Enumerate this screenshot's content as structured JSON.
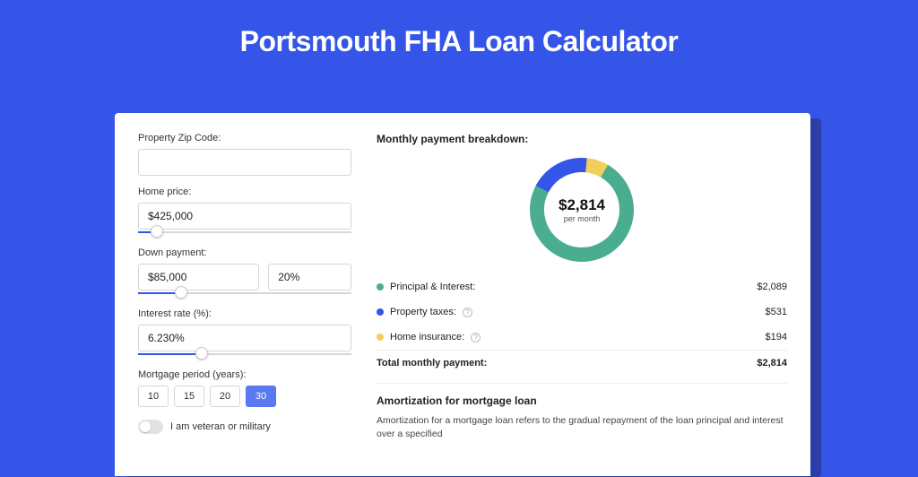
{
  "page": {
    "title": "Portsmouth FHA Loan Calculator",
    "background_color": "#3554e8",
    "shadow_color": "#2a3fa8",
    "card_bg": "#ffffff"
  },
  "form": {
    "zip": {
      "label": "Property Zip Code:",
      "value": ""
    },
    "home_price": {
      "label": "Home price:",
      "value": "$425,000",
      "slider_pct": 9
    },
    "down_payment": {
      "label": "Down payment:",
      "value": "$85,000",
      "pct_value": "20%",
      "slider_pct": 20
    },
    "interest_rate": {
      "label": "Interest rate (%):",
      "value": "6.230%",
      "slider_pct": 30
    },
    "mortgage_period": {
      "label": "Mortgage period (years):",
      "options": [
        "10",
        "15",
        "20",
        "30"
      ],
      "selected": "30"
    },
    "veteran": {
      "label": "I am veteran or military",
      "checked": false
    }
  },
  "breakdown": {
    "title": "Monthly payment breakdown:",
    "center_amount": "$2,814",
    "center_sub": "per month",
    "donut": {
      "segments": [
        {
          "key": "pi",
          "label": "Principal & Interest:",
          "value": "$2,089",
          "color": "#4aad8f",
          "pct": 74.2,
          "has_info": false
        },
        {
          "key": "tax",
          "label": "Property taxes:",
          "value": "$531",
          "color": "#3554e8",
          "pct": 18.9,
          "has_info": true
        },
        {
          "key": "ins",
          "label": "Home insurance:",
          "value": "$194",
          "color": "#f2cf5b",
          "pct": 6.9,
          "has_info": true
        }
      ],
      "stroke_width": 16,
      "radius": 50,
      "size": 120
    },
    "total": {
      "label": "Total monthly payment:",
      "value": "$2,814"
    }
  },
  "amortization": {
    "title": "Amortization for mortgage loan",
    "text": "Amortization for a mortgage loan refers to the gradual repayment of the loan principal and interest over a specified"
  }
}
